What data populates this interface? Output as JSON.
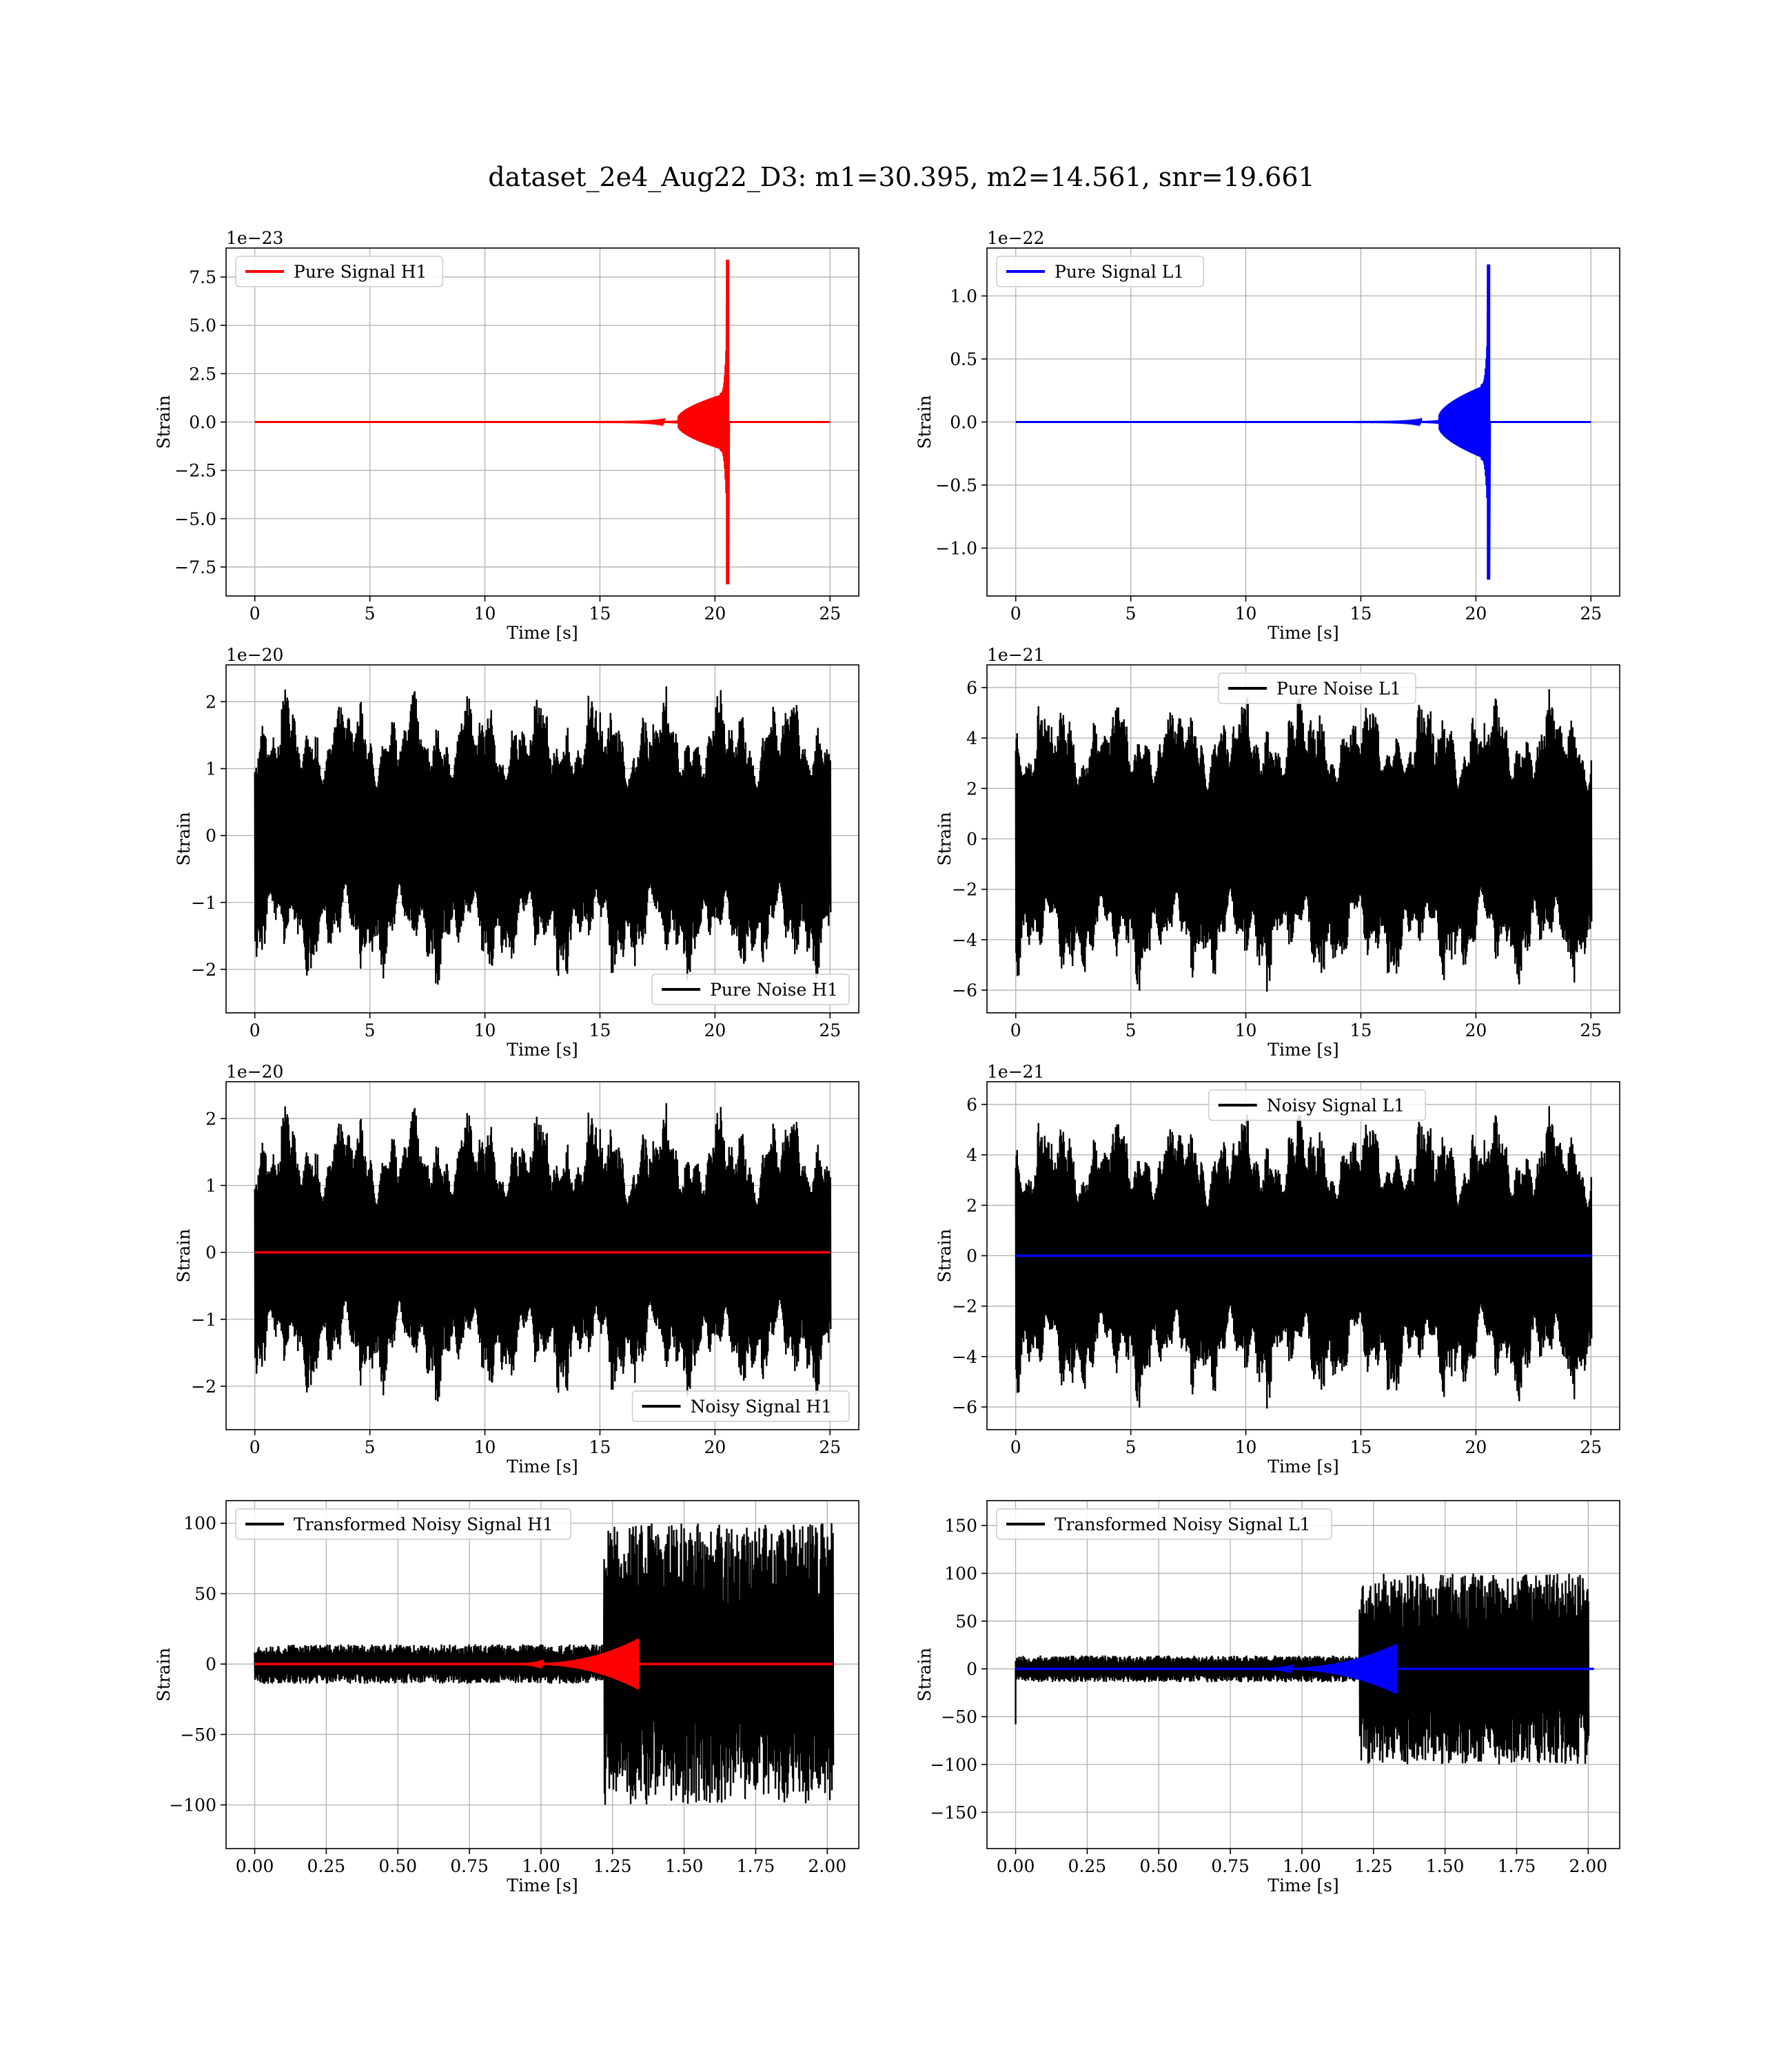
{
  "figure": {
    "title": "dataset_2e4_Aug22_D3: m1=30.395, m2=14.561, snr=19.661"
  },
  "colors": {
    "h1_signal": "#ff0000",
    "l1_signal": "#0000ff",
    "noise": "#000000",
    "grid": "#b0b0b0",
    "axes": "#000000"
  },
  "chart_data": [
    {
      "type": "line",
      "name": "pure-signal-h1",
      "xlabel": "Time [s]",
      "ylabel": "Strain",
      "offset_text": "1e−23",
      "xlim": [
        -1.25,
        26.25
      ],
      "ylim": [
        -9.0,
        9.0
      ],
      "xticks": [
        0,
        5,
        10,
        15,
        20,
        25
      ],
      "xtick_labels": [
        "0",
        "5",
        "10",
        "15",
        "20",
        "25"
      ],
      "yticks": [
        -7.5,
        -5.0,
        -2.5,
        0.0,
        2.5,
        5.0,
        7.5
      ],
      "ytick_labels": [
        "−7.5",
        "−5.0",
        "−2.5",
        "0.0",
        "2.5",
        "5.0",
        "7.5"
      ],
      "legend": {
        "position": "upper-left",
        "entries": [
          {
            "label": "Pure Signal H1",
            "color": "#ff0000"
          }
        ]
      },
      "series": [
        {
          "label": "Pure Signal H1",
          "color": "#ff0000",
          "kind": "chirp",
          "x_start": 0,
          "x_end": 25,
          "onset": 14,
          "merger": 20.6,
          "inspiral_amp": 1.5,
          "peak_amp": 8.4
        }
      ]
    },
    {
      "type": "line",
      "name": "pure-signal-l1",
      "xlabel": "Time [s]",
      "ylabel": "Strain",
      "offset_text": "1e−22",
      "xlim": [
        -1.25,
        26.25
      ],
      "ylim": [
        -1.38,
        1.38
      ],
      "xticks": [
        0,
        5,
        10,
        15,
        20,
        25
      ],
      "xtick_labels": [
        "0",
        "5",
        "10",
        "15",
        "20",
        "25"
      ],
      "yticks": [
        -1.0,
        -0.5,
        0.0,
        0.5,
        1.0
      ],
      "ytick_labels": [
        "−1.0",
        "−0.5",
        "0.0",
        "0.5",
        "1.0"
      ],
      "legend": {
        "position": "upper-left",
        "entries": [
          {
            "label": "Pure Signal L1",
            "color": "#0000ff"
          }
        ]
      },
      "series": [
        {
          "label": "Pure Signal L1",
          "color": "#0000ff",
          "kind": "chirp",
          "x_start": 0,
          "x_end": 25,
          "onset": 14,
          "merger": 20.6,
          "inspiral_amp": 0.3,
          "peak_amp": 1.25
        }
      ]
    },
    {
      "type": "line",
      "name": "pure-noise-h1",
      "xlabel": "Time [s]",
      "ylabel": "Strain",
      "offset_text": "1e−20",
      "xlim": [
        -1.25,
        26.25
      ],
      "ylim": [
        -2.65,
        2.55
      ],
      "xticks": [
        0,
        5,
        10,
        15,
        20,
        25
      ],
      "xtick_labels": [
        "0",
        "5",
        "10",
        "15",
        "20",
        "25"
      ],
      "yticks": [
        -2,
        -1,
        0,
        1,
        2
      ],
      "ytick_labels": [
        "−2",
        "−1",
        "0",
        "1",
        "2"
      ],
      "legend": {
        "position": "lower-right",
        "entries": [
          {
            "label": "Pure Noise H1",
            "color": "#000000"
          }
        ]
      },
      "series": [
        {
          "label": "Pure Noise H1",
          "color": "#000000",
          "kind": "noise",
          "x_start": 0,
          "x_end": 25,
          "base_amp": 1.15,
          "peak_amp": 2.35,
          "seed": 11
        }
      ]
    },
    {
      "type": "line",
      "name": "pure-noise-l1",
      "xlabel": "Time [s]",
      "ylabel": "Strain",
      "offset_text": "1e−21",
      "xlim": [
        -1.25,
        26.25
      ],
      "ylim": [
        -6.9,
        6.9
      ],
      "xticks": [
        0,
        5,
        10,
        15,
        20,
        25
      ],
      "xtick_labels": [
        "0",
        "5",
        "10",
        "15",
        "20",
        "25"
      ],
      "yticks": [
        -6,
        -4,
        -2,
        0,
        2,
        4,
        6
      ],
      "ytick_labels": [
        "−6",
        "−4",
        "−2",
        "0",
        "2",
        "4",
        "6"
      ],
      "legend": {
        "position": "upper-center",
        "entries": [
          {
            "label": "Pure Noise L1",
            "color": "#000000"
          }
        ]
      },
      "series": [
        {
          "label": "Pure Noise L1",
          "color": "#000000",
          "kind": "noise",
          "x_start": 0,
          "x_end": 25,
          "base_amp": 3.2,
          "peak_amp": 6.3,
          "seed": 23
        }
      ]
    },
    {
      "type": "line",
      "name": "noisy-signal-h1",
      "xlabel": "Time [s]",
      "ylabel": "Strain",
      "offset_text": "1e−20",
      "xlim": [
        -1.25,
        26.25
      ],
      "ylim": [
        -2.65,
        2.55
      ],
      "xticks": [
        0,
        5,
        10,
        15,
        20,
        25
      ],
      "xtick_labels": [
        "0",
        "5",
        "10",
        "15",
        "20",
        "25"
      ],
      "yticks": [
        -2,
        -1,
        0,
        1,
        2
      ],
      "ytick_labels": [
        "−2",
        "−1",
        "0",
        "1",
        "2"
      ],
      "legend": {
        "position": "lower-right",
        "entries": [
          {
            "label": "Noisy Signal H1",
            "color": "#000000"
          }
        ]
      },
      "series": [
        {
          "label": "Noisy Signal H1",
          "color": "#000000",
          "kind": "noise",
          "x_start": 0,
          "x_end": 25,
          "base_amp": 1.15,
          "peak_amp": 2.35,
          "seed": 11
        },
        {
          "color": "#ff0000",
          "kind": "flat",
          "x_start": 0,
          "x_end": 25,
          "value": 0
        }
      ]
    },
    {
      "type": "line",
      "name": "noisy-signal-l1",
      "xlabel": "Time [s]",
      "ylabel": "Strain",
      "offset_text": "1e−21",
      "xlim": [
        -1.25,
        26.25
      ],
      "ylim": [
        -6.9,
        6.9
      ],
      "xticks": [
        0,
        5,
        10,
        15,
        20,
        25
      ],
      "xtick_labels": [
        "0",
        "5",
        "10",
        "15",
        "20",
        "25"
      ],
      "yticks": [
        -6,
        -4,
        -2,
        0,
        2,
        4,
        6
      ],
      "ytick_labels": [
        "−6",
        "−4",
        "−2",
        "0",
        "2",
        "4",
        "6"
      ],
      "legend": {
        "position": "upper-center",
        "entries": [
          {
            "label": "Noisy Signal L1",
            "color": "#000000"
          }
        ]
      },
      "series": [
        {
          "label": "Noisy Signal L1",
          "color": "#000000",
          "kind": "noise",
          "x_start": 0,
          "x_end": 25,
          "base_amp": 3.2,
          "peak_amp": 6.3,
          "seed": 23
        },
        {
          "color": "#0000ff",
          "kind": "flat",
          "x_start": 0,
          "x_end": 25,
          "value": 0
        }
      ]
    },
    {
      "type": "line",
      "name": "transformed-noisy-signal-h1",
      "xlabel": "Time [s]",
      "ylabel": "Strain",
      "offset_text": "",
      "xlim": [
        -0.1,
        2.11
      ],
      "ylim": [
        -131,
        116
      ],
      "xticks": [
        0.0,
        0.25,
        0.5,
        0.75,
        1.0,
        1.25,
        1.5,
        1.75,
        2.0
      ],
      "xtick_labels": [
        "0.00",
        "0.25",
        "0.50",
        "0.75",
        "1.00",
        "1.25",
        "1.50",
        "1.75",
        "2.00"
      ],
      "yticks": [
        -100,
        -50,
        0,
        50,
        100
      ],
      "ytick_labels": [
        "−100",
        "−50",
        "0",
        "50",
        "100"
      ],
      "legend": {
        "position": "upper-left",
        "entries": [
          {
            "label": "Transformed Noisy Signal H1",
            "color": "#000000"
          }
        ]
      },
      "series": [
        {
          "label": "Transformed Noisy Signal H1",
          "color": "#000000",
          "kind": "burst",
          "x_start": 0,
          "x_end": 2.02,
          "pre_amp": 14,
          "post_amp": 100,
          "transition": 1.22,
          "seed": 37
        },
        {
          "color": "#ff0000",
          "kind": "whitened",
          "x_start": 0,
          "x_end": 2.02,
          "onset": 0.9,
          "merger": 1.34,
          "peak_amp": 18
        }
      ]
    },
    {
      "type": "line",
      "name": "transformed-noisy-signal-l1",
      "xlabel": "Time [s]",
      "ylabel": "Strain",
      "offset_text": "",
      "xlim": [
        -0.1,
        2.11
      ],
      "ylim": [
        -188,
        176
      ],
      "xticks": [
        0.0,
        0.25,
        0.5,
        0.75,
        1.0,
        1.25,
        1.5,
        1.75,
        2.0
      ],
      "xtick_labels": [
        "0.00",
        "0.25",
        "0.50",
        "0.75",
        "1.00",
        "1.25",
        "1.50",
        "1.75",
        "2.00"
      ],
      "yticks": [
        -150,
        -100,
        -50,
        0,
        50,
        100,
        150
      ],
      "ytick_labels": [
        "−150",
        "−100",
        "−50",
        "0",
        "50",
        "100",
        "150"
      ],
      "legend": {
        "position": "upper-left",
        "entries": [
          {
            "label": "Transformed Noisy Signal L1",
            "color": "#000000"
          }
        ]
      },
      "series": [
        {
          "label": "Transformed Noisy Signal L1",
          "color": "#000000",
          "kind": "burst",
          "x_start": 0,
          "x_end": 2.0,
          "pre_amp": 14,
          "post_amp": 100,
          "transition": 1.2,
          "seed": 53,
          "spike_start": -58
        },
        {
          "color": "#0000ff",
          "kind": "whitened",
          "x_start": 0,
          "x_end": 2.02,
          "onset": 0.85,
          "merger": 1.33,
          "peak_amp": 26
        }
      ]
    }
  ]
}
